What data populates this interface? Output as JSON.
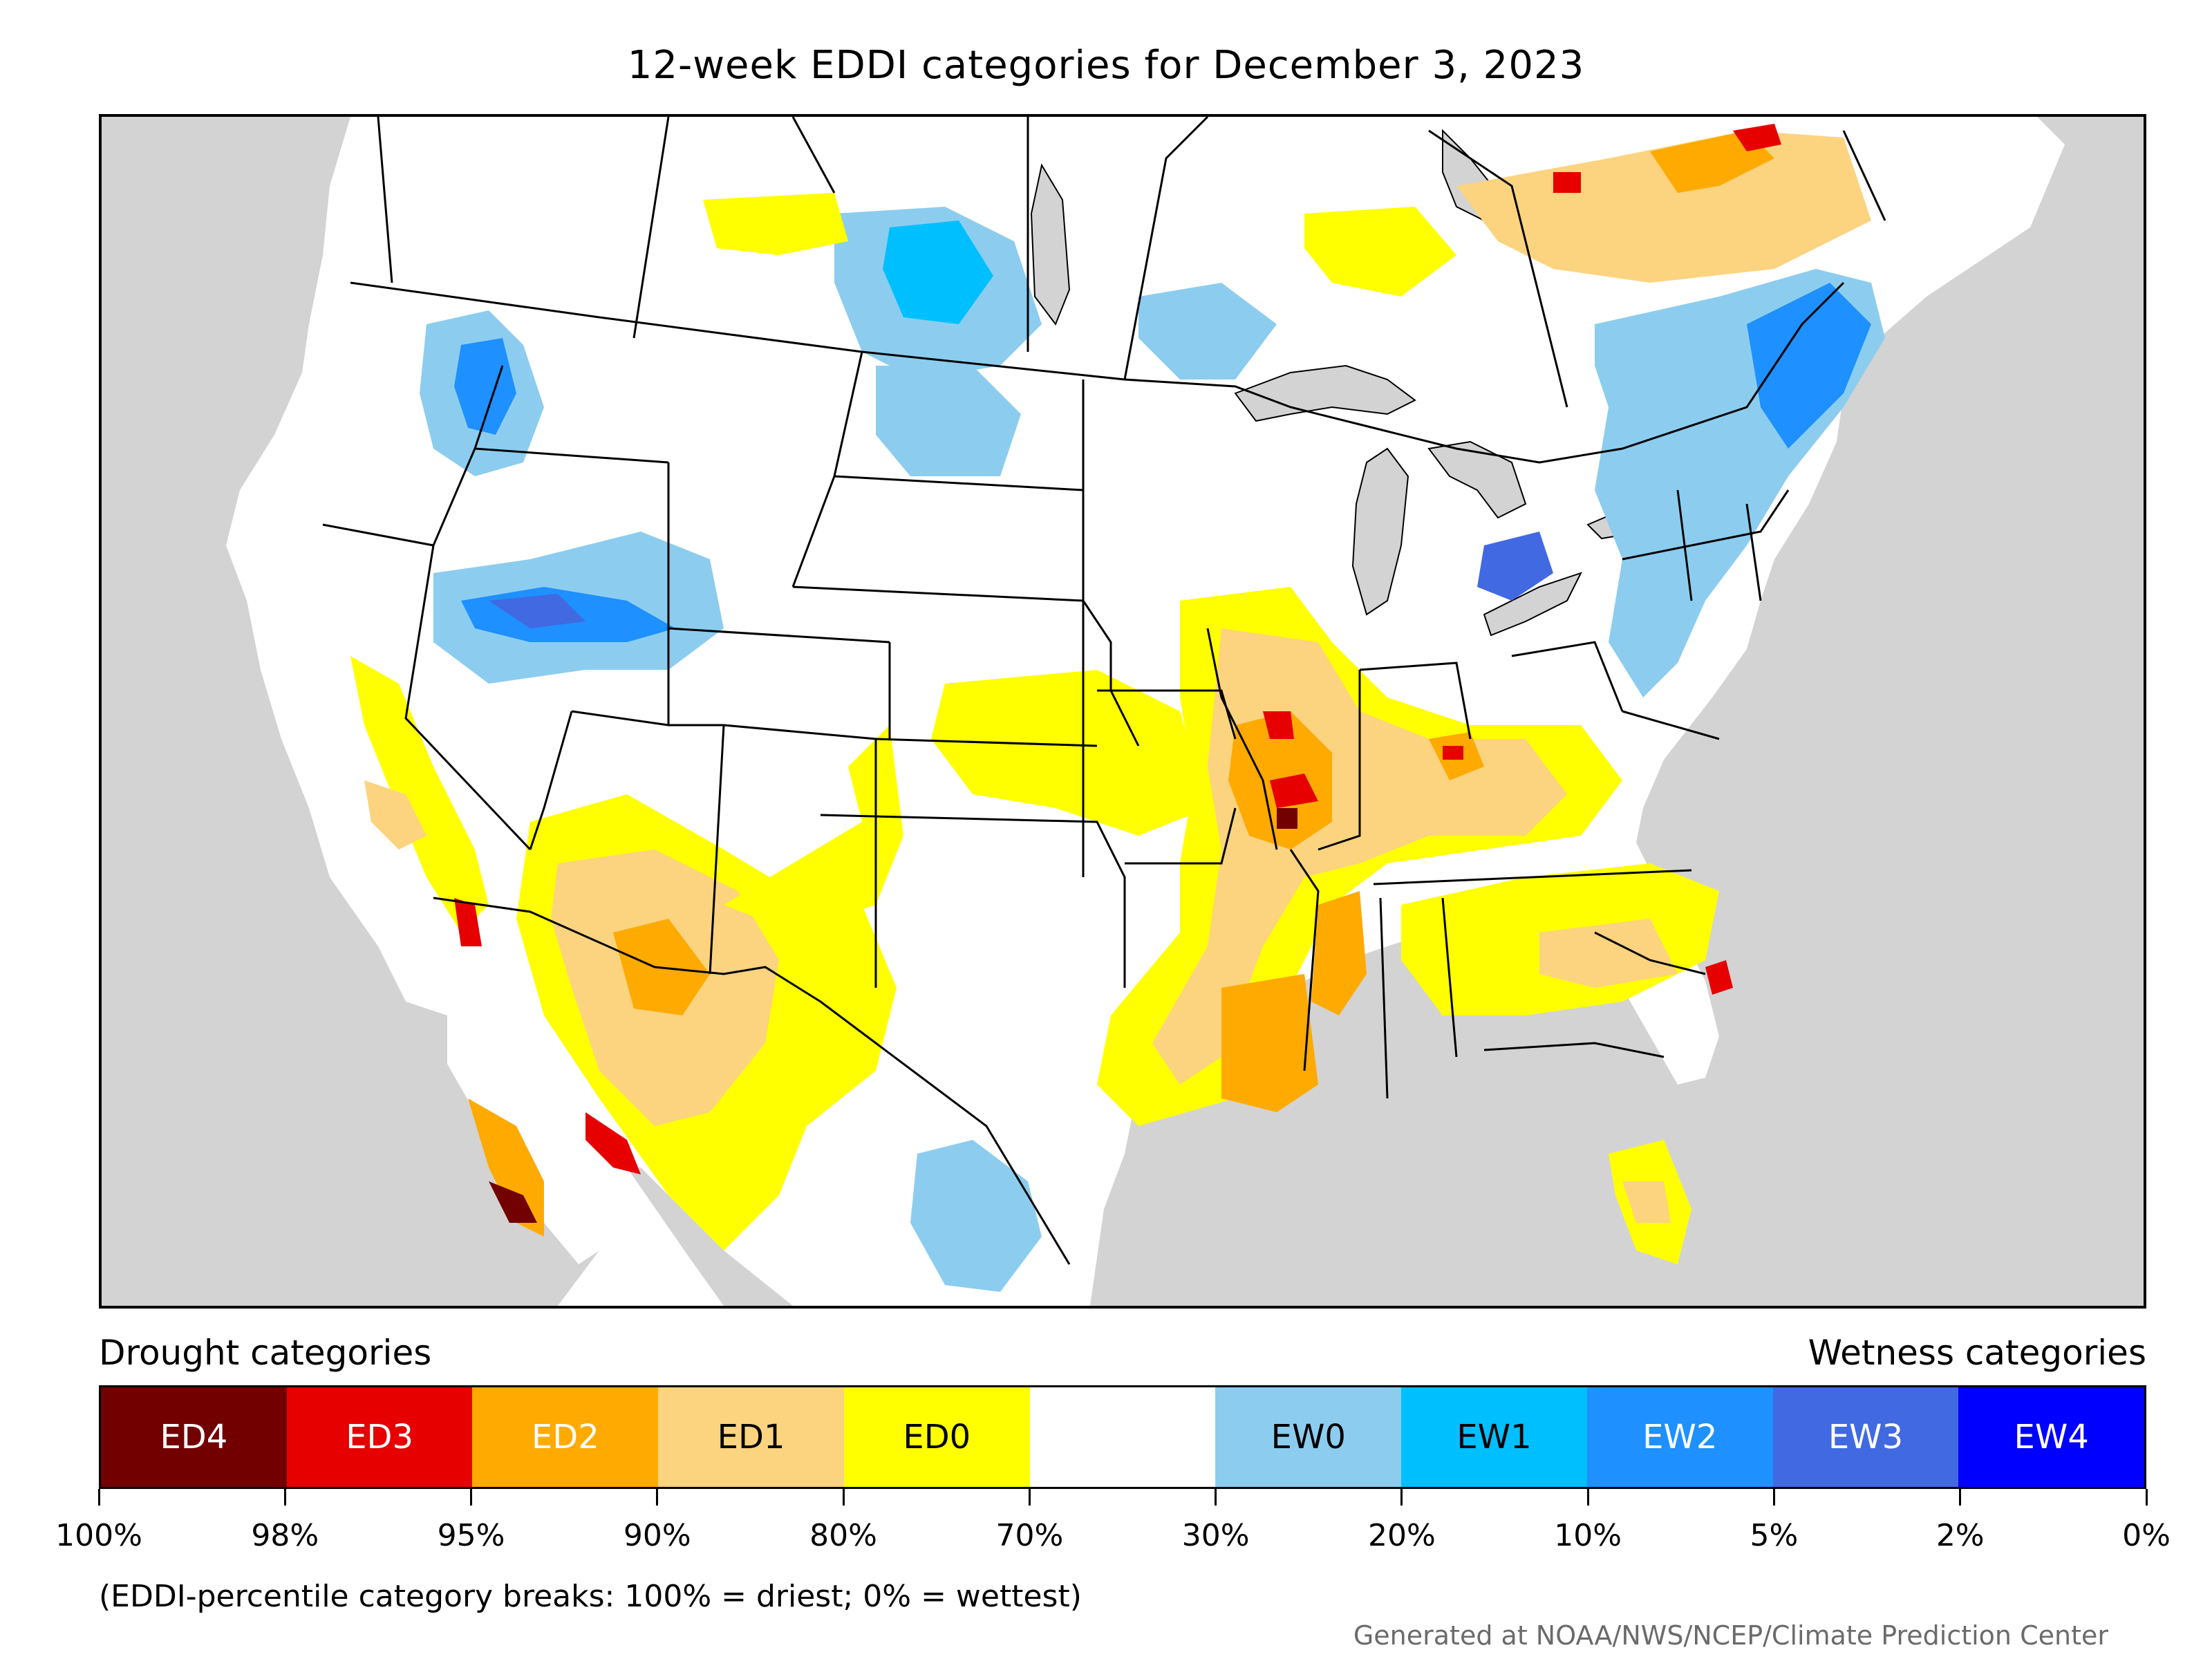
{
  "title": "12-week EDDI categories for December 3, 2023",
  "legend": {
    "left_heading": "Drought categories",
    "right_heading": "Wetness categories",
    "categories": [
      {
        "label": "ED4",
        "color": "#730000",
        "text_color": "#ffffff"
      },
      {
        "label": "ED3",
        "color": "#e60000",
        "text_color": "#ffffff"
      },
      {
        "label": "ED2",
        "color": "#ffaa00",
        "text_color": "#ffffff"
      },
      {
        "label": "ED1",
        "color": "#fcd37f",
        "text_color": "#000000"
      },
      {
        "label": "ED0",
        "color": "#ffff00",
        "text_color": "#000000"
      },
      {
        "label": "",
        "color": "#ffffff",
        "text_color": "#000000"
      },
      {
        "label": "EW0",
        "color": "#8ccdef",
        "text_color": "#000000"
      },
      {
        "label": "EW1",
        "color": "#00bfff",
        "text_color": "#000000"
      },
      {
        "label": "EW2",
        "color": "#1e90ff",
        "text_color": "#ffffff"
      },
      {
        "label": "EW3",
        "color": "#4169e1",
        "text_color": "#ffffff"
      },
      {
        "label": "EW4",
        "color": "#0000ff",
        "text_color": "#ffffff"
      }
    ],
    "breaks": [
      "100%",
      "98%",
      "95%",
      "90%",
      "80%",
      "70%",
      "30%",
      "20%",
      "10%",
      "5%",
      "2%",
      "0%"
    ]
  },
  "note": "(EDDI-percentile category breaks: 100% = driest; 0% = wettest)",
  "credit": "Generated at NOAA/NWS/NCEP/Climate Prediction Center",
  "colors": {
    "ocean": "#d3d3d3",
    "land": "#ffffff",
    "border": "#000000"
  }
}
